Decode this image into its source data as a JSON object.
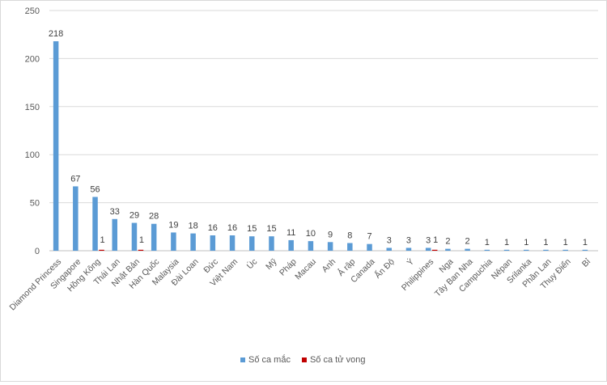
{
  "chart_data": {
    "type": "bar",
    "categories": [
      "Diamond Princess",
      "Singapore",
      "Hồng Kông",
      "Thái Lan",
      "Nhật Bản",
      "Hàn Quốc",
      "Malaysia",
      "Đài Loan",
      "Đức",
      "Việt Nam",
      "Úc",
      "Mỹ",
      "Pháp",
      "Macau",
      "Anh",
      "Ả rập",
      "Canada",
      "Ấn Độ",
      "Ý",
      "Philippines",
      "Nga",
      "Tây Ban Nha",
      "Campuchia",
      "Nêpan",
      "Srilanka",
      "Phần Lan",
      "Thụy Điển",
      "Bỉ"
    ],
    "series": [
      {
        "name": "Số ca mắc",
        "color": "#5b9bd5",
        "values": [
          218,
          67,
          56,
          33,
          29,
          28,
          19,
          18,
          16,
          16,
          15,
          15,
          11,
          10,
          9,
          8,
          7,
          3,
          3,
          3,
          2,
          2,
          1,
          1,
          1,
          1,
          1,
          1
        ]
      },
      {
        "name": "Số ca tử vong",
        "color": "#c00000",
        "values": [
          null,
          null,
          1,
          null,
          1,
          null,
          null,
          null,
          null,
          null,
          null,
          null,
          null,
          null,
          null,
          null,
          null,
          null,
          null,
          1,
          null,
          null,
          null,
          null,
          null,
          null,
          null,
          null
        ]
      }
    ],
    "title": "",
    "xlabel": "",
    "ylabel": "",
    "ylim": [
      0,
      250
    ],
    "yticks": [
      0,
      50,
      100,
      150,
      200,
      250
    ],
    "grid": true,
    "legend": "bottom"
  }
}
